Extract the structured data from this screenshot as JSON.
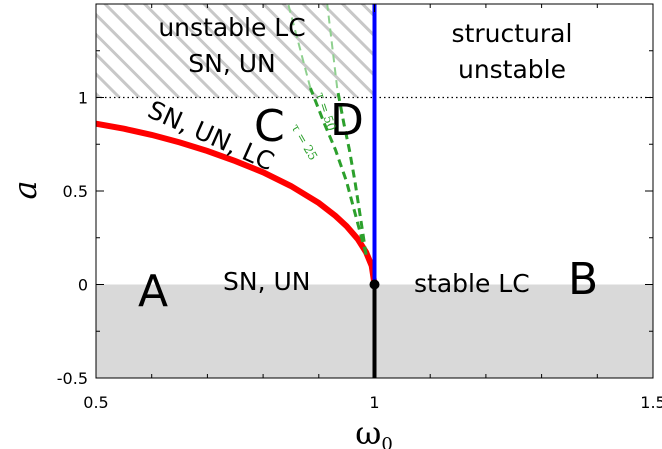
{
  "chart_data": {
    "type": "line",
    "xlabel": "ω",
    "xlabel_sub": "0",
    "ylabel": "a",
    "xlim": [
      0.5,
      1.5
    ],
    "ylim": [
      -0.5,
      1.5
    ],
    "x_ticks": [
      0.5,
      1,
      1.5
    ],
    "x_tick_labels": [
      "0.5",
      "1",
      "1.5"
    ],
    "y_ticks": [
      -0.5,
      0,
      0.5,
      1
    ],
    "y_tick_labels": [
      "-0.5",
      "0",
      "0.5",
      "1"
    ],
    "grid": false,
    "shaded_regions": [
      {
        "kind": "grey",
        "x": [
          0.5,
          1.5
        ],
        "y": [
          -0.5,
          0
        ]
      },
      {
        "kind": "hatched",
        "x": [
          0.5,
          1.0
        ],
        "y": [
          1.0,
          1.5
        ]
      }
    ],
    "reference_lines": [
      {
        "style": "dotted",
        "y": 1.0,
        "color": "#000000"
      }
    ],
    "series": [
      {
        "color": "#ff0000",
        "style": "solid",
        "points": [
          [
            0.5,
            0.86
          ],
          [
            0.55,
            0.833
          ],
          [
            0.6,
            0.8
          ],
          [
            0.65,
            0.76
          ],
          [
            0.7,
            0.714
          ],
          [
            0.75,
            0.66
          ],
          [
            0.8,
            0.6
          ],
          [
            0.85,
            0.527
          ],
          [
            0.9,
            0.436
          ],
          [
            0.93,
            0.367
          ],
          [
            0.95,
            0.312
          ],
          [
            0.97,
            0.243
          ],
          [
            0.985,
            0.172
          ],
          [
            0.995,
            0.1
          ],
          [
            1.0,
            0.0
          ]
        ]
      },
      {
        "color": "#0000ff",
        "style": "solid",
        "points": [
          [
            1.0,
            0.0
          ],
          [
            1.0,
            1.5
          ]
        ]
      },
      {
        "color": "#000000",
        "style": "solid",
        "points": [
          [
            1.0,
            -0.5
          ],
          [
            1.0,
            0.0
          ]
        ]
      },
      {
        "color": "#2ca02c",
        "style": "dashed",
        "label": "τ = 25",
        "points": [
          [
            0.985,
            0.16
          ],
          [
            0.95,
            0.55
          ],
          [
            0.93,
            0.72
          ],
          [
            0.91,
            0.86
          ],
          [
            0.885,
            1.05
          ]
        ]
      },
      {
        "color": "#2ca02c",
        "style": "dashed",
        "label": "τ = 50",
        "points": [
          [
            0.985,
            0.16
          ],
          [
            0.965,
            0.55
          ],
          [
            0.955,
            0.72
          ],
          [
            0.945,
            0.86
          ],
          [
            0.933,
            1.05
          ]
        ]
      },
      {
        "color": "#8fd08f",
        "style": "dashed",
        "points": [
          [
            0.885,
            1.05
          ],
          [
            0.845,
            1.5
          ]
        ]
      },
      {
        "color": "#8fd08f",
        "style": "dashed",
        "points": [
          [
            0.933,
            1.05
          ],
          [
            0.915,
            1.5
          ]
        ]
      }
    ],
    "markers": [
      {
        "x": 1.0,
        "y": 0.0,
        "color": "#000000"
      }
    ],
    "colors": {
      "grey_region": "#d9d9d9",
      "hatch": "#c8c8c8",
      "red_curve": "#ff0000",
      "blue_line": "#0000ff",
      "green_dash": "#2ca02c",
      "light_green_dash": "#8fd08f"
    },
    "annotations": {
      "unstable_lc_line1": "unstable LC",
      "unstable_lc_line2": "SN, UN",
      "structural_line1": "structural",
      "structural_line2": "unstable",
      "curve_label": "SN, UN, LC",
      "region_C": "C",
      "region_D": "D",
      "region_A": "A",
      "region_B": "B",
      "sn_un": "SN, UN",
      "stable_lc": "stable LC",
      "tau50": "τ = 50",
      "tau25": "τ = 25"
    }
  }
}
